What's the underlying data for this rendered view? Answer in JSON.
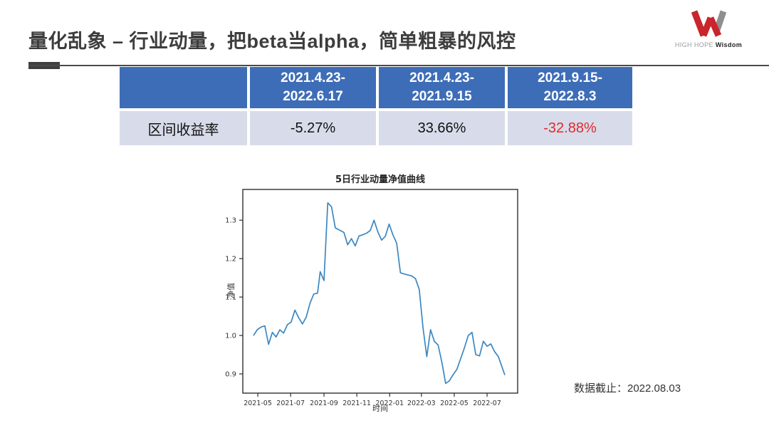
{
  "slide": {
    "title": "量化乱象 – 行业动量，把beta当alpha，简单粗暴的风控",
    "footnote": "数据截止：2022.08.03"
  },
  "logo": {
    "name_light": "HIGH HOPE",
    "name_bold": "Wisdom",
    "red": "#c9252c",
    "gray": "#9a9a9a"
  },
  "table": {
    "header": [
      "",
      "2021.4.23-\n2022.6.17",
      "2021.4.23-\n2021.9.15",
      "2021.9.15-\n2022.8.3"
    ],
    "rows": [
      {
        "label": "区间收益率",
        "values": [
          {
            "text": "-5.27%",
            "negative": false
          },
          {
            "text": "33.66%",
            "negative": false
          },
          {
            "text": "-32.88%",
            "negative": true
          }
        ]
      }
    ],
    "colors": {
      "header_bg": "#3e6db8",
      "header_text": "#ffffff",
      "row_bg": "#d8dcea",
      "text": "#111111",
      "negative": "#e02a2a"
    }
  },
  "chart_data": {
    "type": "line",
    "title": "5日行业动量净值曲线",
    "xlabel": "时间",
    "ylabel": "净值",
    "line_color": "#3c87c0",
    "axis_color": "#2f2f2f",
    "ylim": [
      0.85,
      1.38
    ],
    "yticks": [
      0.9,
      1.0,
      1.1,
      1.2,
      1.3
    ],
    "xtick_labels": [
      "2021-05",
      "2021-07",
      "2021-09",
      "2021-11",
      "2022-01",
      "2022-03",
      "2022-05",
      "2022-07"
    ],
    "xtick_dates": [
      "2021-05-01",
      "2021-07-01",
      "2021-09-01",
      "2021-11-01",
      "2022-01-01",
      "2022-03-01",
      "2022-05-01",
      "2022-07-01"
    ],
    "x_dates": [
      "2021-04-23",
      "2021-04-30",
      "2021-05-07",
      "2021-05-14",
      "2021-05-21",
      "2021-05-28",
      "2021-06-04",
      "2021-06-11",
      "2021-06-18",
      "2021-06-25",
      "2021-07-02",
      "2021-07-09",
      "2021-07-16",
      "2021-07-23",
      "2021-07-30",
      "2021-08-06",
      "2021-08-13",
      "2021-08-20",
      "2021-08-25",
      "2021-09-01",
      "2021-09-08",
      "2021-09-15",
      "2021-09-22",
      "2021-09-29",
      "2021-10-08",
      "2021-10-15",
      "2021-10-22",
      "2021-10-29",
      "2021-11-05",
      "2021-11-12",
      "2021-11-19",
      "2021-11-26",
      "2021-12-03",
      "2021-12-10",
      "2021-12-17",
      "2021-12-24",
      "2021-12-31",
      "2022-01-07",
      "2022-01-14",
      "2022-01-21",
      "2022-01-28",
      "2022-02-11",
      "2022-02-18",
      "2022-02-25",
      "2022-03-04",
      "2022-03-11",
      "2022-03-18",
      "2022-03-25",
      "2022-04-01",
      "2022-04-08",
      "2022-04-15",
      "2022-04-22",
      "2022-04-29",
      "2022-05-06",
      "2022-05-13",
      "2022-05-20",
      "2022-05-27",
      "2022-06-03",
      "2022-06-10",
      "2022-06-17",
      "2022-06-24",
      "2022-07-01",
      "2022-07-08",
      "2022-07-15",
      "2022-07-22",
      "2022-08-03"
    ],
    "values": [
      1.0,
      1.015,
      1.022,
      1.025,
      0.977,
      1.008,
      0.996,
      1.015,
      1.006,
      1.028,
      1.035,
      1.066,
      1.046,
      1.03,
      1.048,
      1.084,
      1.108,
      1.11,
      1.166,
      1.143,
      1.345,
      1.335,
      1.28,
      1.275,
      1.268,
      1.236,
      1.252,
      1.233,
      1.259,
      1.262,
      1.266,
      1.273,
      1.3,
      1.27,
      1.248,
      1.258,
      1.29,
      1.262,
      1.24,
      1.163,
      1.16,
      1.155,
      1.148,
      1.12,
      1.02,
      0.945,
      1.015,
      0.985,
      0.975,
      0.93,
      0.875,
      0.882,
      0.898,
      0.912,
      0.94,
      0.968,
      1.0,
      1.008,
      0.95,
      0.947,
      0.985,
      0.972,
      0.978,
      0.958,
      0.945,
      0.897
    ]
  }
}
